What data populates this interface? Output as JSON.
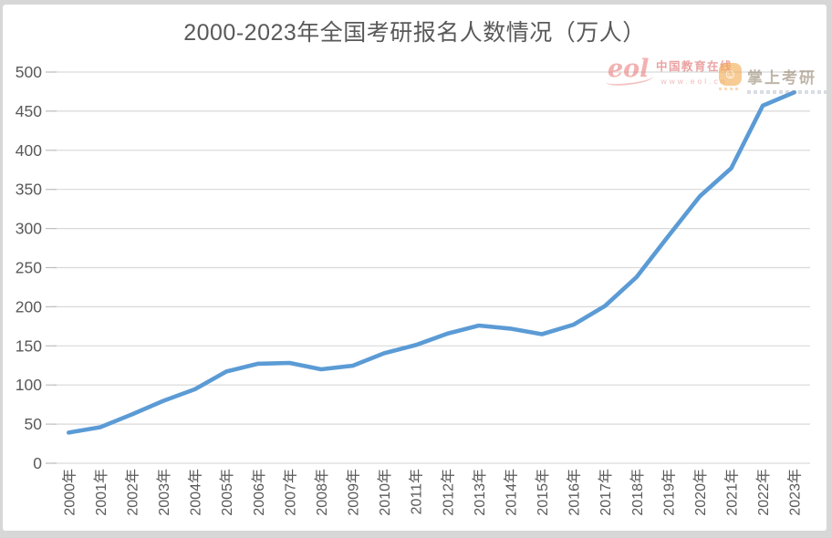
{
  "page": {
    "background_color": "#ffffff",
    "frame_color": "#d7d7d7"
  },
  "chart_data": {
    "type": "line",
    "title": "2000-2023年全国考研报名人数情况（万人）",
    "categories": [
      "2000年",
      "2001年",
      "2002年",
      "2003年",
      "2004年",
      "2005年",
      "2006年",
      "2007年",
      "2008年",
      "2009年",
      "2010年",
      "2011年",
      "2012年",
      "2013年",
      "2014年",
      "2015年",
      "2016年",
      "2017年",
      "2018年",
      "2019年",
      "2020年",
      "2021年",
      "2022年",
      "2023年"
    ],
    "values": [
      39.2,
      46,
      62.4,
      79.7,
      94.5,
      117.2,
      127.1,
      128.2,
      120,
      124.6,
      140.6,
      151.1,
      165.6,
      176,
      172,
      164.9,
      177,
      201,
      238,
      290,
      341,
      377,
      457,
      474
    ],
    "xlabel": "",
    "ylabel": "",
    "ylim": [
      0,
      500
    ],
    "yticks": [
      0,
      50,
      100,
      150,
      200,
      250,
      300,
      350,
      400,
      450,
      500
    ],
    "grid": true,
    "legend_position": "none",
    "line_color": "#5B9BD5",
    "gridline_color": "#d9d9d9",
    "tick_color": "#bfbfbf",
    "axis_text_color": "#595959",
    "title_color": "#595959"
  },
  "watermarks": {
    "eol": {
      "logo_text": "eol",
      "name": "中国教育在线",
      "url": "www.eol.cn"
    },
    "kaoyan": {
      "name": "掌上考研",
      "icon": "smiley-face-icon",
      "icon_glyph": "☺"
    }
  }
}
